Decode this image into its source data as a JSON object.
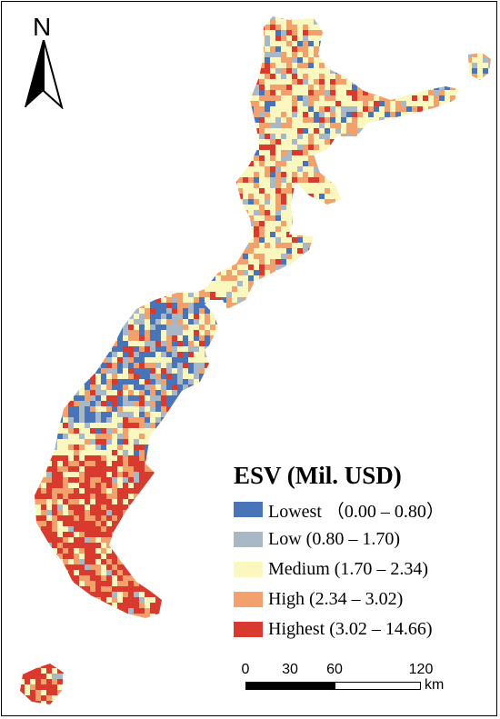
{
  "north_arrow": {
    "label": "N"
  },
  "legend": {
    "title": "ESV (Mil. USD)",
    "items": [
      {
        "label": "Lowest （0.00 – 0.80）",
        "color": "#4a74b8"
      },
      {
        "label": "Low (0.80 – 1.70)",
        "color": "#a8b8c6"
      },
      {
        "label": "Medium (1.70 – 2.34)",
        "color": "#fbf8bf"
      },
      {
        "label": "High (2.34 – 3.02)",
        "color": "#f2a06c"
      },
      {
        "label": "Highest (3.02 – 14.66)",
        "color": "#d93a2e"
      }
    ]
  },
  "scale_bar": {
    "ticks": [
      "0",
      "30",
      "60",
      "120"
    ],
    "unit": "km"
  }
}
